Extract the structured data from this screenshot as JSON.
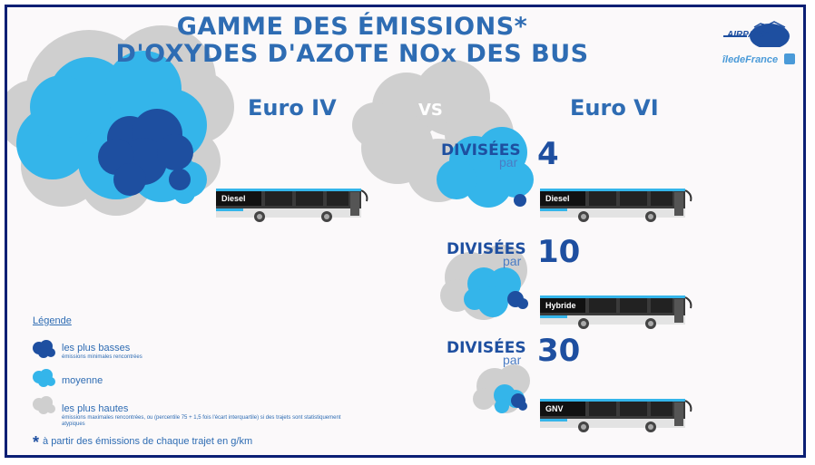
{
  "title": {
    "line1": "GAMME DES ÉMISSIONS*",
    "line2": "D'OXYDES D'AZOTE NOx DES BUS"
  },
  "headers": {
    "left": "Euro IV",
    "vs": "VS",
    "right": "Euro VI"
  },
  "logos": {
    "airparif": "AIRPARIF",
    "iledefrance": "îledeFrance"
  },
  "buses": {
    "euro4": {
      "type": "Diesel"
    },
    "euro6": [
      {
        "type": "Diesel",
        "divided_word": "DIVISÉES",
        "par": "par",
        "factor": "4"
      },
      {
        "type": "Hybride",
        "divided_word": "DIVISÉES",
        "par": "par",
        "factor": "10"
      },
      {
        "type": "GNV",
        "divided_word": "DIVISÉES",
        "par": "par",
        "factor": "30"
      }
    ]
  },
  "legend": {
    "title": "Légende",
    "items": [
      {
        "label": "les plus basses",
        "sub": "émissions minimales rencontrées",
        "color": "#1e4fa0"
      },
      {
        "label": "moyenne",
        "sub": "",
        "color": "#34b5ea"
      },
      {
        "label": "les plus hautes",
        "sub": "émissions maximales rencontrées, ou (percentile 75 + 1,5 fois l'écart interquartile) si des trajets sont statistiquement atypiques",
        "color": "#cfcfcf"
      }
    ]
  },
  "footnote": "à partir des émissions de chaque trajet en g/km",
  "colors": {
    "dark_blue": "#1e4fa0",
    "light_blue": "#34b5ea",
    "grey": "#cfcfcf",
    "title_blue": "#2e6cb3"
  }
}
